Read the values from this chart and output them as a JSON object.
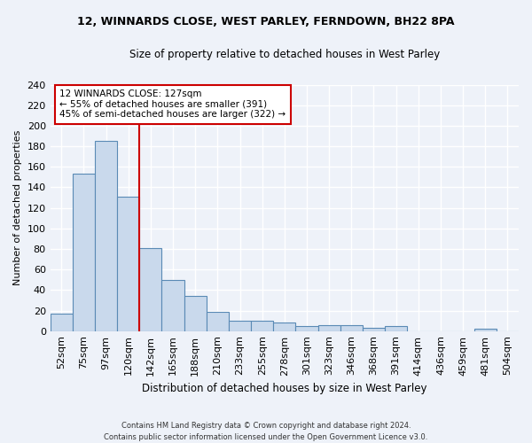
{
  "title1": "12, WINNARDS CLOSE, WEST PARLEY, FERNDOWN, BH22 8PA",
  "title2": "Size of property relative to detached houses in West Parley",
  "xlabel": "Distribution of detached houses by size in West Parley",
  "ylabel": "Number of detached properties",
  "categories": [
    "52sqm",
    "75sqm",
    "97sqm",
    "120sqm",
    "142sqm",
    "165sqm",
    "188sqm",
    "210sqm",
    "233sqm",
    "255sqm",
    "278sqm",
    "301sqm",
    "323sqm",
    "346sqm",
    "368sqm",
    "391sqm",
    "414sqm",
    "436sqm",
    "459sqm",
    "481sqm",
    "504sqm"
  ],
  "values": [
    17,
    153,
    185,
    131,
    81,
    50,
    34,
    19,
    10,
    10,
    8,
    5,
    6,
    6,
    3,
    5,
    0,
    0,
    0,
    2,
    0
  ],
  "bar_color": "#c9d9ec",
  "bar_edge_color": "#5a8ab5",
  "vline_color": "#cc0000",
  "annotation_text": "12 WINNARDS CLOSE: 127sqm\n← 55% of detached houses are smaller (391)\n45% of semi-detached houses are larger (322) →",
  "annotation_box_color": "#ffffff",
  "annotation_box_edge": "#cc0000",
  "ylim": [
    0,
    240
  ],
  "yticks": [
    0,
    20,
    40,
    60,
    80,
    100,
    120,
    140,
    160,
    180,
    200,
    220,
    240
  ],
  "footer": "Contains HM Land Registry data © Crown copyright and database right 2024.\nContains public sector information licensed under the Open Government Licence v3.0.",
  "bg_color": "#eef2f9",
  "grid_color": "#ffffff"
}
